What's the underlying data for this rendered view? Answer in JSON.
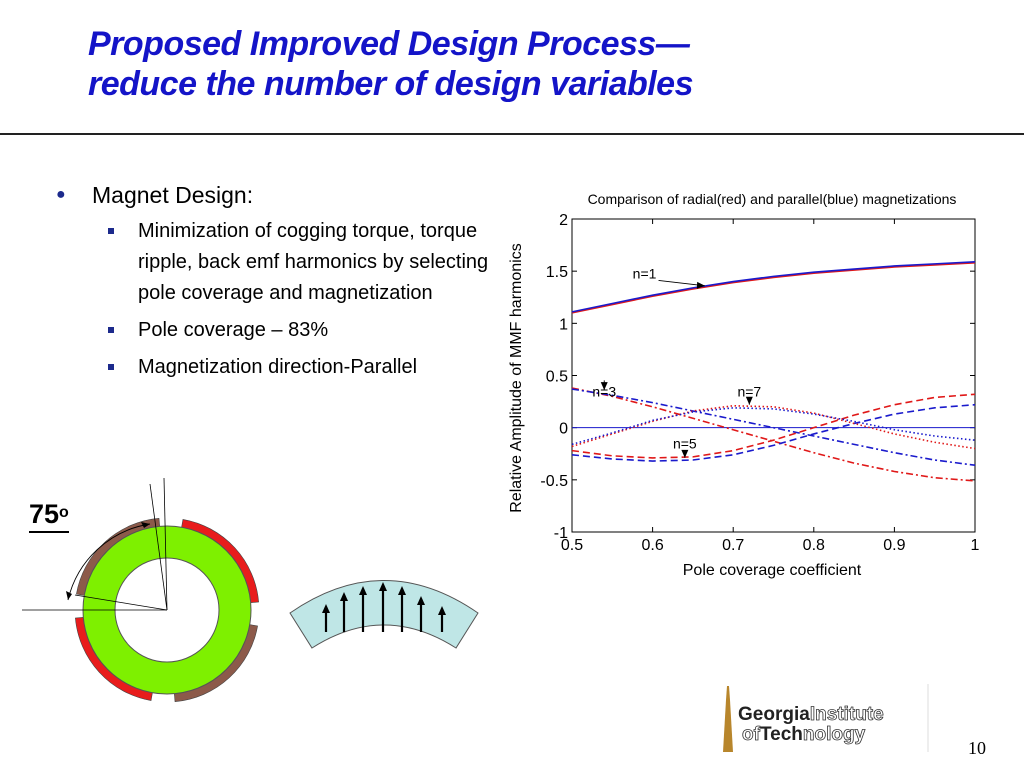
{
  "slide": {
    "title_line1": "Proposed Improved Design Process—",
    "title_line2": "reduce the number of design variables",
    "page_number": "10"
  },
  "bullets": {
    "main": "Magnet Design:",
    "sub": [
      "Minimization of cogging torque, torque ripple, back emf harmonics by selecting pole coverage and magnetization",
      "Pole coverage – 83%",
      "Magnetization direction-Parallel"
    ]
  },
  "figure": {
    "angle_value": "75",
    "angle_superscript": "o"
  },
  "logo": {
    "line1_bold": "Georgia",
    "line1_outline": "Institute",
    "line2_outline": "of",
    "line2_bold": "Tech",
    "line2_outline2": "nology"
  },
  "colors": {
    "title": "#1414c8",
    "radial": "#e01818",
    "parallel": "#1a1acc",
    "ring_green": "#7ef000",
    "magnet_red": "#e81c1c",
    "magnet_brown": "#8c5a4a",
    "arc_fill": "#bfe6e6",
    "logo_gold": "#b8862c"
  },
  "chart_data": {
    "type": "line",
    "title": "Comparison of radial(red) and parallel(blue) magnetizations",
    "xlabel": "Pole coverage coefficient",
    "ylabel": "Relative Amplitude of MMF harmonics",
    "xlim": [
      0.5,
      1
    ],
    "ylim": [
      -1,
      2
    ],
    "xticks": [
      "0.5",
      "0.6",
      "0.7",
      "0.8",
      "0.9",
      "1"
    ],
    "yticks": [
      "-1",
      "-0.5",
      "0",
      "0.5",
      "1",
      "1.5",
      "2"
    ],
    "grid": false,
    "x": [
      0.5,
      0.55,
      0.6,
      0.65,
      0.7,
      0.75,
      0.8,
      0.85,
      0.9,
      0.95,
      1.0
    ],
    "series": [
      {
        "harmonic": "n=1",
        "magnetization": "radial",
        "color": "#e01818",
        "style": "solid",
        "values": [
          1.1,
          1.18,
          1.26,
          1.33,
          1.39,
          1.44,
          1.48,
          1.51,
          1.54,
          1.56,
          1.58
        ]
      },
      {
        "harmonic": "n=1",
        "magnetization": "parallel",
        "color": "#1a1acc",
        "style": "solid",
        "values": [
          1.11,
          1.19,
          1.27,
          1.34,
          1.4,
          1.45,
          1.49,
          1.52,
          1.55,
          1.57,
          1.59
        ]
      },
      {
        "harmonic": "n=3",
        "magnetization": "radial",
        "color": "#e01818",
        "style": "dashdot",
        "values": [
          0.38,
          0.3,
          0.2,
          0.09,
          -0.02,
          -0.13,
          -0.24,
          -0.34,
          -0.42,
          -0.48,
          -0.51
        ]
      },
      {
        "harmonic": "n=3",
        "magnetization": "parallel",
        "color": "#1a1acc",
        "style": "dashdot",
        "values": [
          0.37,
          0.31,
          0.24,
          0.16,
          0.08,
          0.0,
          -0.08,
          -0.16,
          -0.24,
          -0.31,
          -0.36
        ]
      },
      {
        "harmonic": "n=5",
        "magnetization": "radial",
        "color": "#e01818",
        "style": "dashed",
        "values": [
          -0.22,
          -0.27,
          -0.29,
          -0.28,
          -0.22,
          -0.12,
          0.0,
          0.12,
          0.22,
          0.29,
          0.32
        ]
      },
      {
        "harmonic": "n=5",
        "magnetization": "parallel",
        "color": "#1a1acc",
        "style": "dashed",
        "values": [
          -0.26,
          -0.3,
          -0.32,
          -0.31,
          -0.26,
          -0.17,
          -0.06,
          0.04,
          0.13,
          0.19,
          0.22
        ]
      },
      {
        "harmonic": "n=7",
        "magnetization": "radial",
        "color": "#e01818",
        "style": "dotted",
        "values": [
          -0.18,
          -0.06,
          0.06,
          0.16,
          0.21,
          0.2,
          0.14,
          0.04,
          -0.06,
          -0.14,
          -0.2
        ]
      },
      {
        "harmonic": "n=7",
        "magnetization": "parallel",
        "color": "#1a1acc",
        "style": "dotted",
        "values": [
          -0.16,
          -0.05,
          0.07,
          0.15,
          0.19,
          0.18,
          0.13,
          0.06,
          -0.02,
          -0.08,
          -0.12
        ]
      }
    ],
    "reference_line": 0,
    "annotations": [
      {
        "text": "n=1",
        "at": [
          0.59,
          1.43
        ]
      },
      {
        "text": "n=3",
        "at": [
          0.54,
          0.3
        ]
      },
      {
        "text": "n=5",
        "at": [
          0.64,
          -0.2
        ]
      },
      {
        "text": "n=7",
        "at": [
          0.72,
          0.3
        ]
      }
    ]
  }
}
